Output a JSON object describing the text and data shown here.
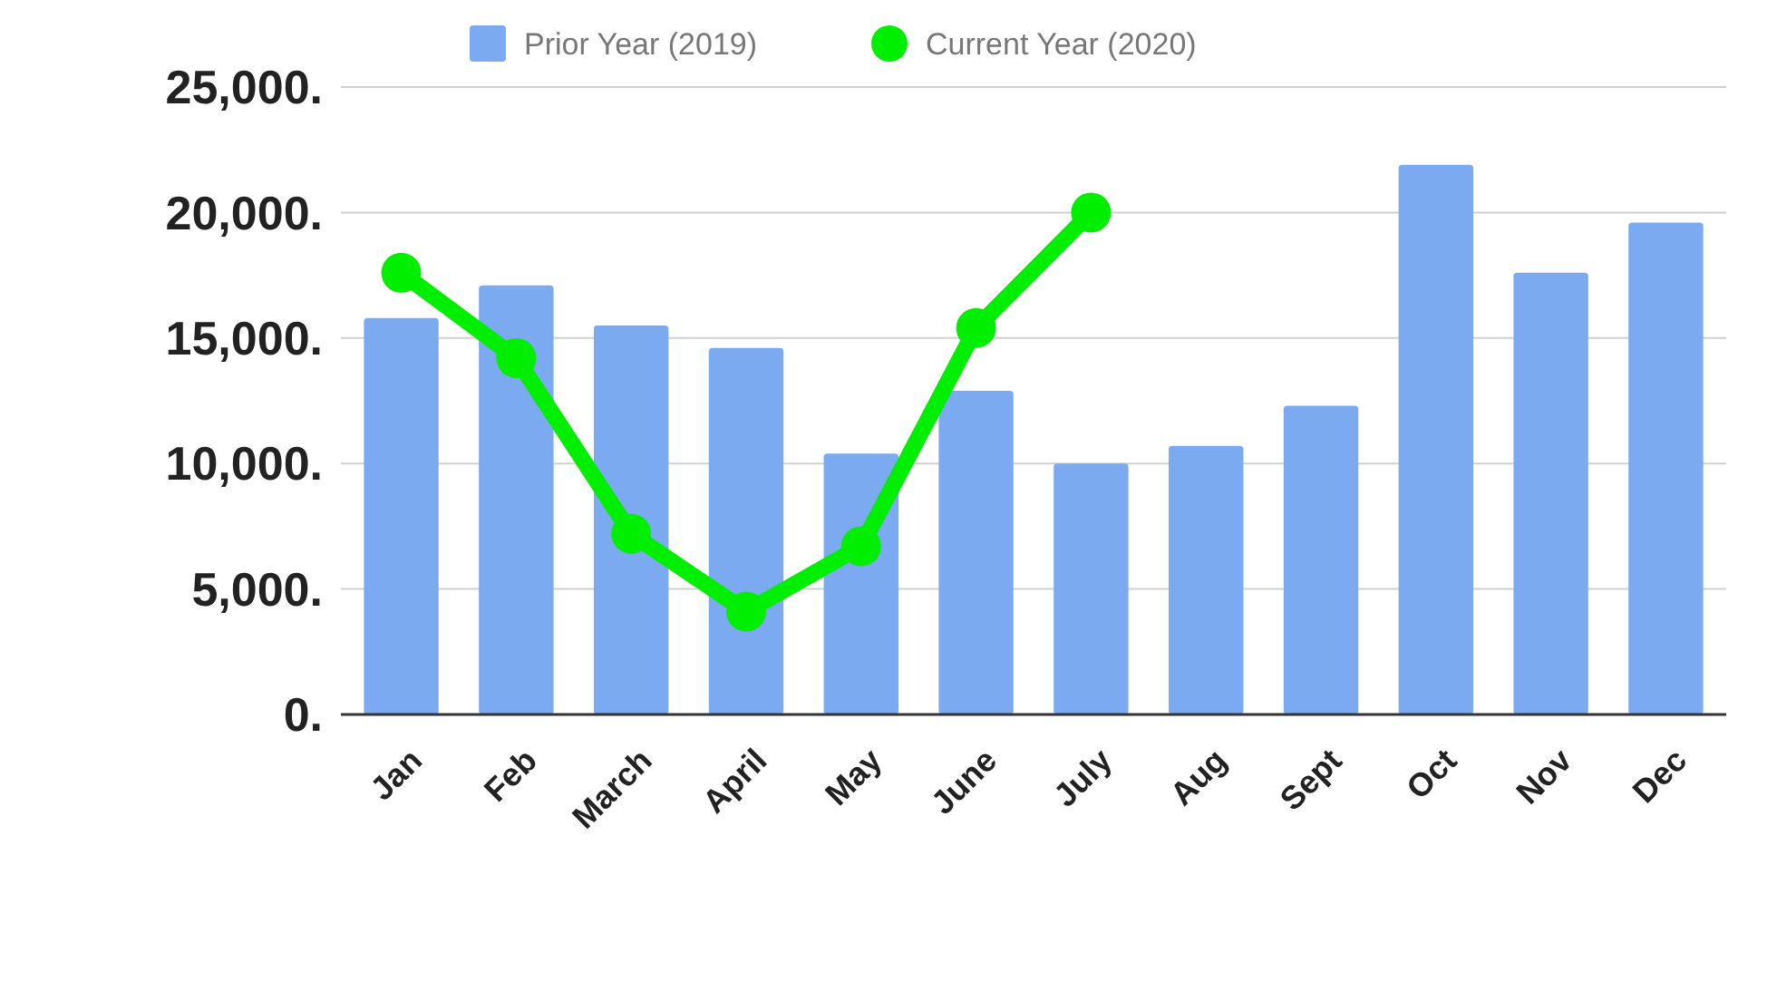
{
  "chart_data": {
    "type": "bar",
    "categories": [
      "Jan",
      "Feb",
      "March",
      "April",
      "May",
      "June",
      "July",
      "Aug",
      "Sept",
      "Oct",
      "Nov",
      "Dec"
    ],
    "series": [
      {
        "name": "Prior Year (2019)",
        "color": "#7baaf0",
        "values": [
          15800,
          17100,
          15500,
          14600,
          10400,
          12900,
          10000,
          10700,
          12300,
          21900,
          17600,
          19600
        ]
      },
      {
        "name": "Current Year (2020)",
        "type": "line",
        "color": "#00ee00",
        "marker": "circle",
        "values": [
          17600,
          14200,
          7200,
          4100,
          6700,
          15400,
          20000,
          null,
          null,
          null,
          null,
          null
        ]
      }
    ],
    "ylim": [
      0,
      25000
    ],
    "yticks": [
      {
        "value": 0,
        "label": "0."
      },
      {
        "value": 5000,
        "label": "5,000."
      },
      {
        "value": 10000,
        "label": "10,000."
      },
      {
        "value": 15000,
        "label": "15,000."
      },
      {
        "value": 20000,
        "label": "20,000."
      },
      {
        "value": 25000,
        "label": "25,000."
      }
    ],
    "grid": "y",
    "legend": "top"
  }
}
